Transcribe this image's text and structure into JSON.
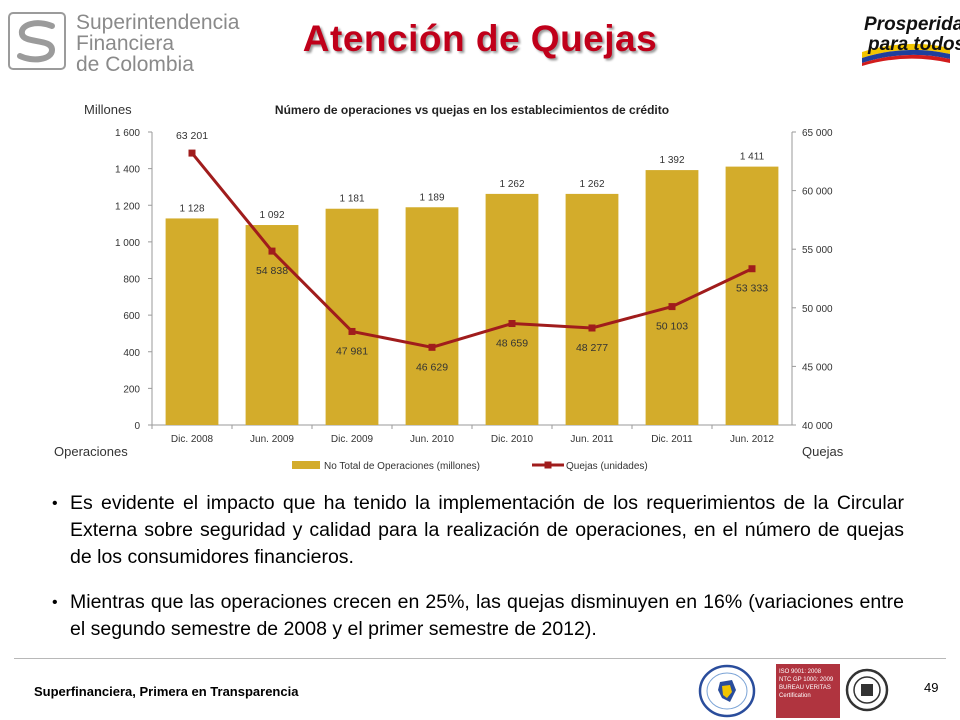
{
  "header": {
    "logo_lines": [
      "Superintendencia",
      "Financiera",
      "de Colombia"
    ],
    "title": "Atención de Quejas",
    "right_logo_lines": [
      "Prosperidad",
      "para todos"
    ]
  },
  "chart_data": {
    "type": "bar+line",
    "title": "Número de operaciones vs quejas en los establecimientos de crédito",
    "categories": [
      "Dic. 2008",
      "Jun. 2009",
      "Dic. 2009",
      "Jun. 2010",
      "Dic. 2010",
      "Jun. 2011",
      "Dic. 2011",
      "Jun. 2012"
    ],
    "series": [
      {
        "name": "No Total de Operaciones (millones)",
        "type": "bar",
        "axis": "left",
        "values": [
          1128,
          1092,
          1181,
          1189,
          1262,
          1262,
          1392,
          1411
        ],
        "labels": [
          "1 128",
          "1 092",
          "1 181",
          "1 189",
          "1 262",
          "1 262",
          "1 392",
          "1 411"
        ],
        "color": "#d3ac2b"
      },
      {
        "name": "Quejas (unidades)",
        "type": "line",
        "axis": "right",
        "values": [
          63201,
          54838,
          47981,
          46629,
          48659,
          48277,
          50103,
          53333
        ],
        "labels": [
          "63 201",
          "54 838",
          "47 981",
          "46 629",
          "48 659",
          "48 277",
          "50 103",
          "53 333"
        ],
        "color": "#a01c1c"
      }
    ],
    "y_left": {
      "unit_label": "Millones",
      "ylim": [
        0,
        1600
      ],
      "ticks": [
        "0",
        "200",
        "400",
        "600",
        "800",
        "1 000",
        "1 200",
        "1 400",
        "1 600"
      ]
    },
    "y_right": {
      "ylim": [
        40000,
        65000
      ],
      "ticks": [
        "40 000",
        "45 000",
        "50 000",
        "55 000",
        "60 000",
        "65 000"
      ]
    },
    "left_caption": "Operaciones",
    "right_caption": "Quejas",
    "legend_position": "bottom",
    "grid": false
  },
  "bullets": [
    "Es evidente el impacto que ha tenido la implementación de los requerimientos de la Circular Externa sobre seguridad y calidad para la realización de operaciones, en el número de quejas de los consumidores financieros.",
    "Mientras que las operaciones crecen en 25%, las quejas disminuyen en 16% (variaciones entre el segundo semestre de 2008 y el primer semestre de 2012)."
  ],
  "footer": {
    "tagline": "Superfinanciera, Primera en Transparencia",
    "page_number": "49",
    "cert_text": [
      "ISO 9001: 2008",
      "NTC GP 1000: 2009",
      "BUREAU VERITAS",
      "Certification"
    ]
  }
}
